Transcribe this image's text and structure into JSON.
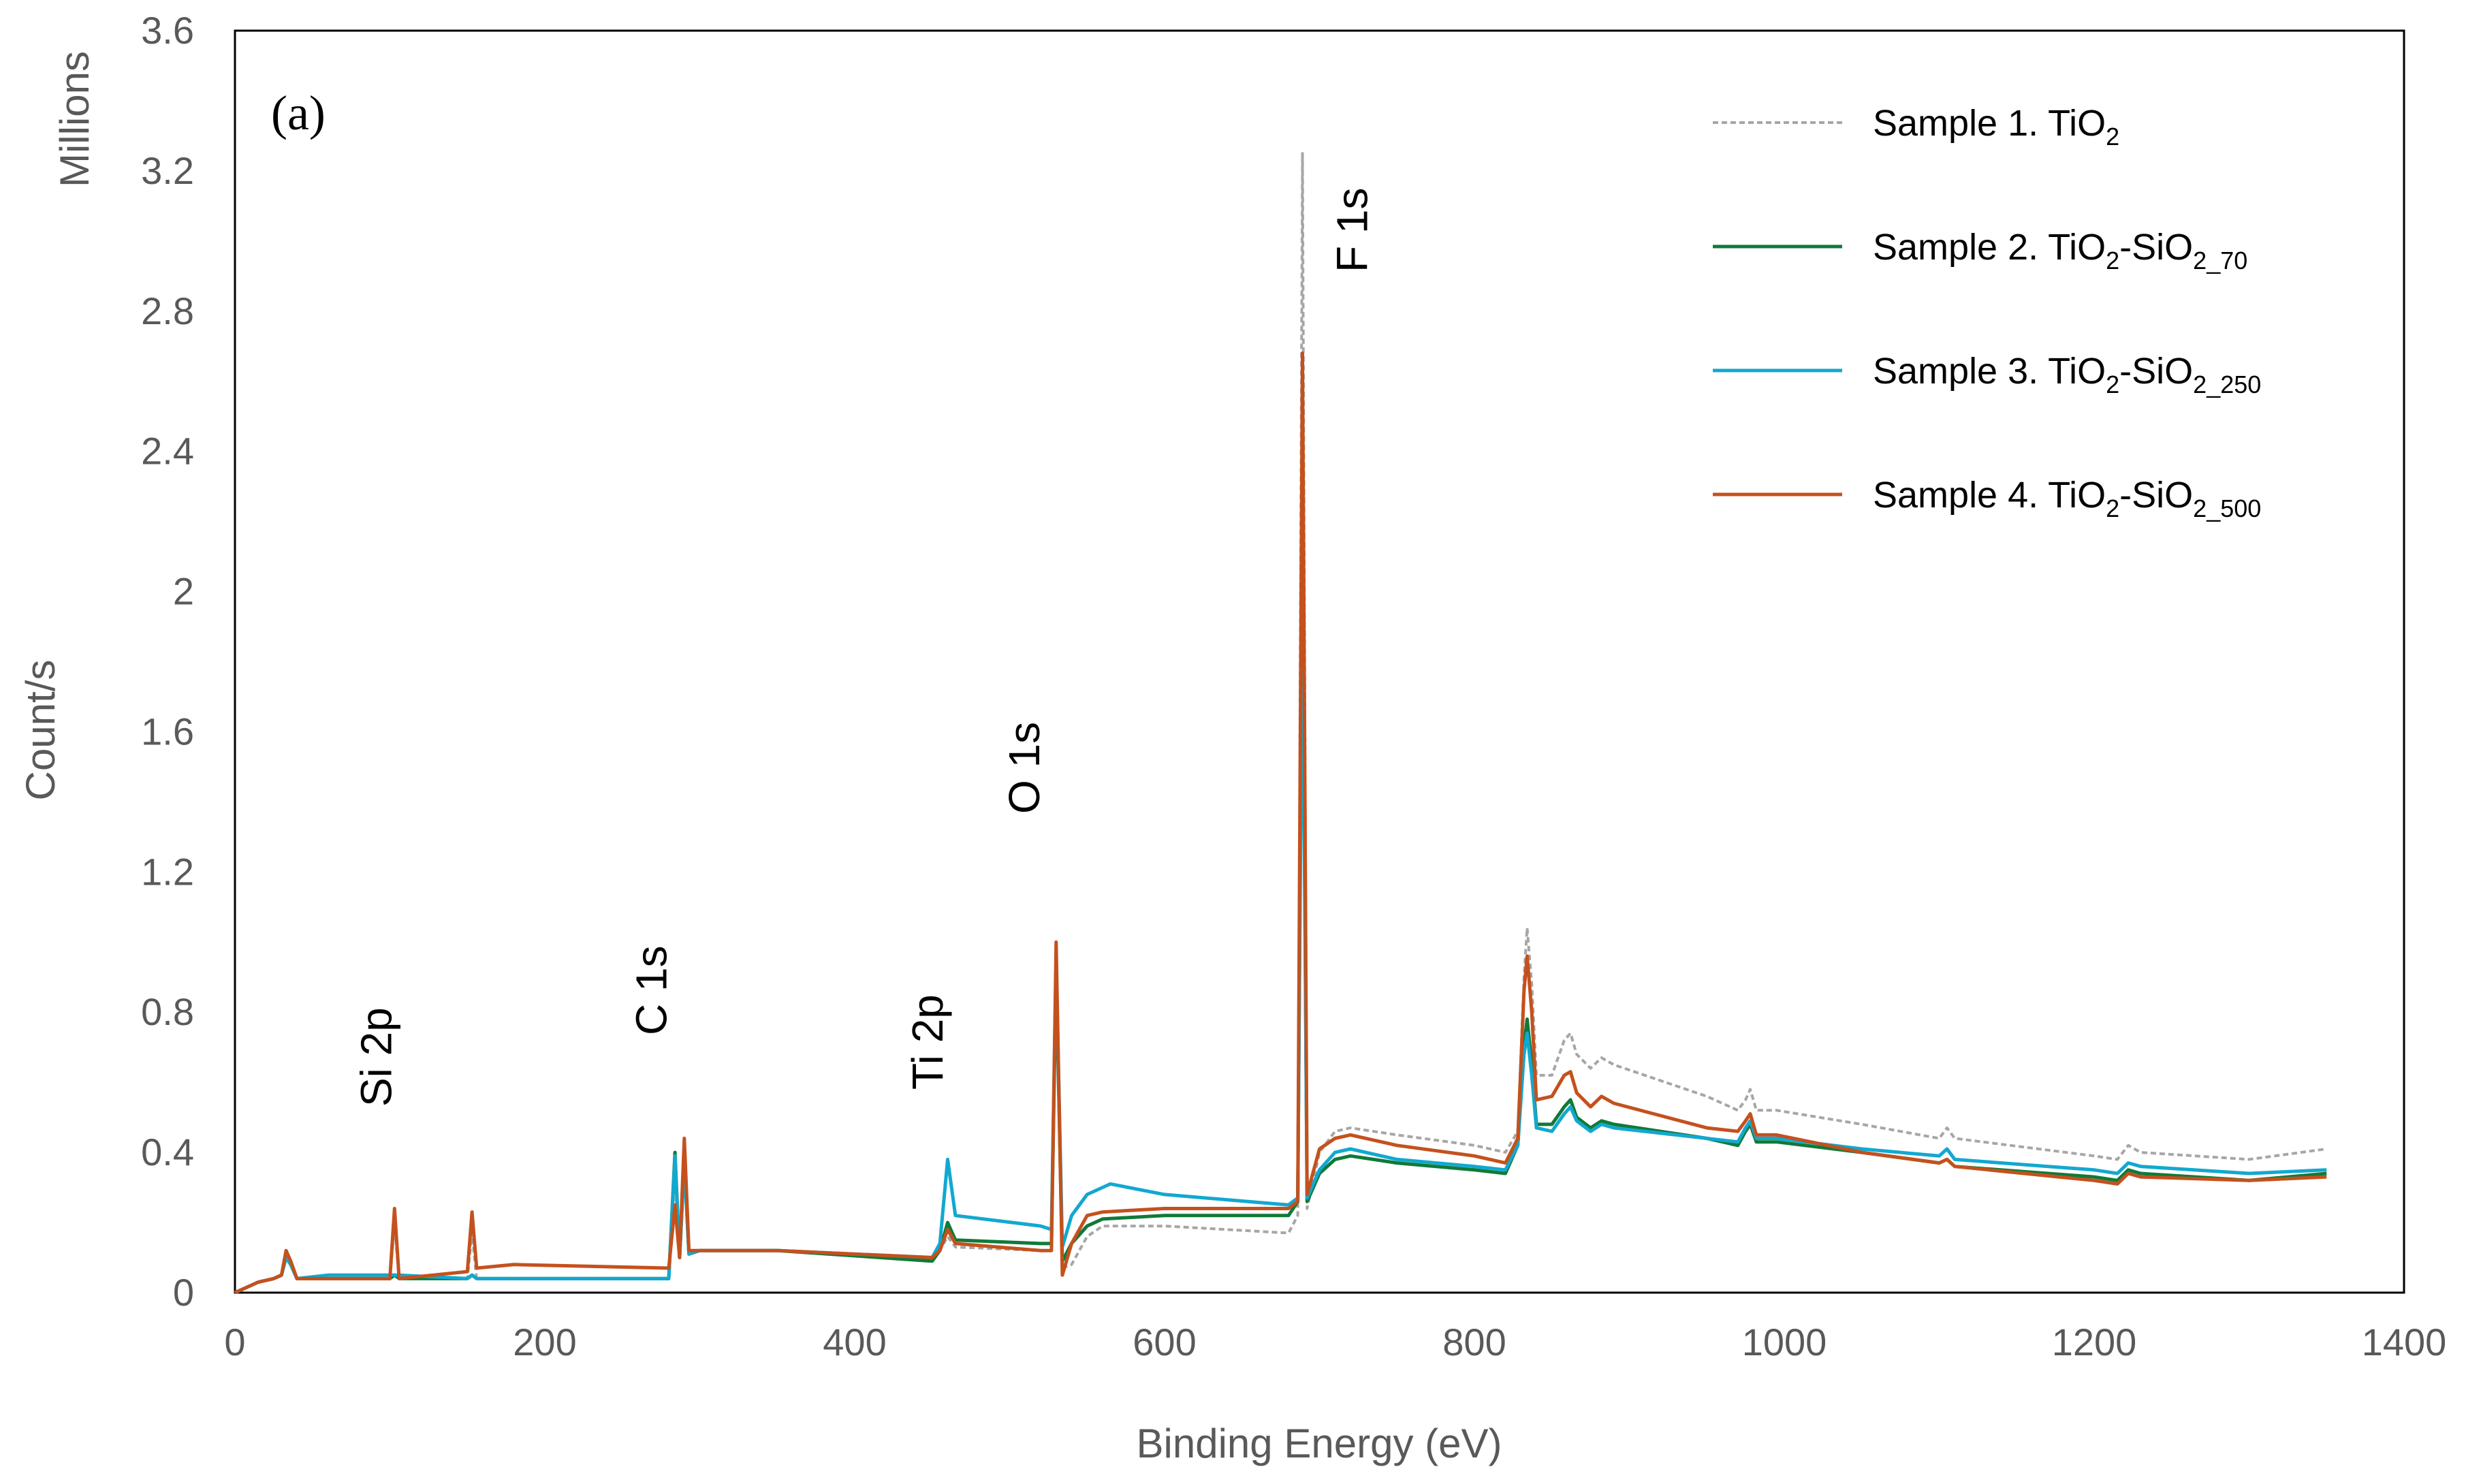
{
  "chart_data": {
    "type": "line",
    "panel_label": "(a)",
    "xlabel": "Binding Energy (eV)",
    "ylabel": "Count/s",
    "y_unit_label": "Millions",
    "xlim": [
      0,
      1400
    ],
    "ylim": [
      0,
      3.6
    ],
    "x_ticks": [
      0,
      200,
      400,
      600,
      800,
      1000,
      1200,
      1400
    ],
    "x_tick_labels": [
      "0",
      "200",
      "400",
      "600",
      "800",
      "1000",
      "1200",
      "1400"
    ],
    "y_ticks": [
      0,
      0.4,
      0.8,
      1.2,
      1.6,
      2.0,
      2.4,
      2.8,
      3.2,
      3.6
    ],
    "y_tick_labels": [
      "0",
      "0.4",
      "0.8",
      "1.2",
      "1.6",
      "2",
      "2.4",
      "2.8",
      "3.2",
      "3.6"
    ],
    "grid": false,
    "legend_position": "top-right",
    "peak_annotations": [
      {
        "label": "Si 2p",
        "x": 103
      },
      {
        "label": "C 1s",
        "x": 285
      },
      {
        "label": "Ti 2p",
        "x": 459
      },
      {
        "label": "O 1s",
        "x": 530
      },
      {
        "label": "F 1s",
        "x": 689
      }
    ],
    "series": [
      {
        "id": "s1",
        "name_main": "Sample 1. TiO",
        "name_sub1": "2",
        "name_mid": "",
        "name_sub2": "",
        "color": "#a6a6a6",
        "dashed": true,
        "points": [
          [
            0,
            0
          ],
          [
            5,
            0.01
          ],
          [
            15,
            0.03
          ],
          [
            25,
            0.04
          ],
          [
            30,
            0.05
          ],
          [
            33,
            0.11
          ],
          [
            36,
            0.09
          ],
          [
            40,
            0.04
          ],
          [
            100,
            0.04
          ],
          [
            103,
            0.19
          ],
          [
            106,
            0.04
          ],
          [
            150,
            0.04
          ],
          [
            153,
            0.17
          ],
          [
            156,
            0.04
          ],
          [
            280,
            0.04
          ],
          [
            284,
            0.34
          ],
          [
            287,
            0.1
          ],
          [
            290,
            0.4
          ],
          [
            293,
            0.11
          ],
          [
            300,
            0.12
          ],
          [
            350,
            0.12
          ],
          [
            450,
            0.09
          ],
          [
            455,
            0.12
          ],
          [
            460,
            0.16
          ],
          [
            465,
            0.13
          ],
          [
            520,
            0.12
          ],
          [
            527,
            0.12
          ],
          [
            530,
            0.95
          ],
          [
            534,
            0.07
          ],
          [
            540,
            0.08
          ],
          [
            550,
            0.16
          ],
          [
            560,
            0.19
          ],
          [
            600,
            0.19
          ],
          [
            680,
            0.17
          ],
          [
            686,
            0.22
          ],
          [
            689,
            3.25
          ],
          [
            692,
            0.24
          ],
          [
            700,
            0.4
          ],
          [
            710,
            0.46
          ],
          [
            720,
            0.47
          ],
          [
            750,
            0.45
          ],
          [
            800,
            0.42
          ],
          [
            820,
            0.4
          ],
          [
            828,
            0.46
          ],
          [
            832,
            0.9
          ],
          [
            834,
            1.04
          ],
          [
            837,
            0.88
          ],
          [
            840,
            0.62
          ],
          [
            850,
            0.62
          ],
          [
            858,
            0.72
          ],
          [
            862,
            0.74
          ],
          [
            866,
            0.68
          ],
          [
            875,
            0.64
          ],
          [
            882,
            0.67
          ],
          [
            890,
            0.65
          ],
          [
            950,
            0.56
          ],
          [
            970,
            0.52
          ],
          [
            975,
            0.55
          ],
          [
            978,
            0.58
          ],
          [
            982,
            0.52
          ],
          [
            995,
            0.52
          ],
          [
            1050,
            0.48
          ],
          [
            1100,
            0.44
          ],
          [
            1105,
            0.47
          ],
          [
            1110,
            0.44
          ],
          [
            1200,
            0.39
          ],
          [
            1215,
            0.38
          ],
          [
            1222,
            0.42
          ],
          [
            1230,
            0.4
          ],
          [
            1300,
            0.38
          ],
          [
            1350,
            0.41
          ]
        ]
      },
      {
        "id": "s2",
        "name_main": "Sample 2. TiO",
        "name_sub1": "2",
        "name_mid": "-SiO",
        "name_sub2": "2_70",
        "color": "#0f7a39",
        "dashed": false,
        "points": [
          [
            0,
            0
          ],
          [
            5,
            0.01
          ],
          [
            15,
            0.03
          ],
          [
            25,
            0.04
          ],
          [
            30,
            0.05
          ],
          [
            33,
            0.1
          ],
          [
            36,
            0.08
          ],
          [
            40,
            0.04
          ],
          [
            100,
            0.04
          ],
          [
            103,
            0.05
          ],
          [
            106,
            0.04
          ],
          [
            150,
            0.04
          ],
          [
            153,
            0.05
          ],
          [
            156,
            0.04
          ],
          [
            280,
            0.04
          ],
          [
            284,
            0.4
          ],
          [
            287,
            0.1
          ],
          [
            290,
            0.38
          ],
          [
            293,
            0.11
          ],
          [
            300,
            0.12
          ],
          [
            350,
            0.12
          ],
          [
            450,
            0.09
          ],
          [
            455,
            0.12
          ],
          [
            460,
            0.2
          ],
          [
            465,
            0.15
          ],
          [
            520,
            0.14
          ],
          [
            527,
            0.14
          ],
          [
            530,
            0.92
          ],
          [
            534,
            0.09
          ],
          [
            540,
            0.14
          ],
          [
            550,
            0.19
          ],
          [
            560,
            0.21
          ],
          [
            600,
            0.22
          ],
          [
            680,
            0.22
          ],
          [
            686,
            0.26
          ],
          [
            689,
            2.1
          ],
          [
            692,
            0.26
          ],
          [
            700,
            0.34
          ],
          [
            710,
            0.38
          ],
          [
            720,
            0.39
          ],
          [
            750,
            0.37
          ],
          [
            800,
            0.35
          ],
          [
            820,
            0.34
          ],
          [
            828,
            0.42
          ],
          [
            832,
            0.7
          ],
          [
            834,
            0.78
          ],
          [
            837,
            0.65
          ],
          [
            840,
            0.48
          ],
          [
            850,
            0.48
          ],
          [
            858,
            0.53
          ],
          [
            862,
            0.55
          ],
          [
            866,
            0.5
          ],
          [
            875,
            0.47
          ],
          [
            882,
            0.49
          ],
          [
            890,
            0.48
          ],
          [
            950,
            0.44
          ],
          [
            970,
            0.42
          ],
          [
            975,
            0.46
          ],
          [
            978,
            0.48
          ],
          [
            982,
            0.43
          ],
          [
            995,
            0.43
          ],
          [
            1050,
            0.4
          ],
          [
            1100,
            0.37
          ],
          [
            1105,
            0.38
          ],
          [
            1110,
            0.36
          ],
          [
            1200,
            0.33
          ],
          [
            1215,
            0.32
          ],
          [
            1222,
            0.35
          ],
          [
            1230,
            0.34
          ],
          [
            1300,
            0.32
          ],
          [
            1350,
            0.34
          ]
        ]
      },
      {
        "id": "s3",
        "name_main": "Sample 3. TiO",
        "name_sub1": "2",
        "name_mid": "-SiO",
        "name_sub2": "2_250",
        "color": "#12a8d0",
        "dashed": false,
        "points": [
          [
            0,
            0
          ],
          [
            5,
            0.01
          ],
          [
            15,
            0.03
          ],
          [
            25,
            0.04
          ],
          [
            30,
            0.05
          ],
          [
            33,
            0.1
          ],
          [
            36,
            0.08
          ],
          [
            40,
            0.04
          ],
          [
            60,
            0.05
          ],
          [
            100,
            0.05
          ],
          [
            103,
            0.05
          ],
          [
            106,
            0.05
          ],
          [
            150,
            0.04
          ],
          [
            153,
            0.05
          ],
          [
            156,
            0.04
          ],
          [
            280,
            0.04
          ],
          [
            284,
            0.39
          ],
          [
            287,
            0.1
          ],
          [
            290,
            0.37
          ],
          [
            293,
            0.11
          ],
          [
            300,
            0.12
          ],
          [
            350,
            0.12
          ],
          [
            450,
            0.1
          ],
          [
            455,
            0.14
          ],
          [
            460,
            0.38
          ],
          [
            465,
            0.22
          ],
          [
            520,
            0.19
          ],
          [
            527,
            0.18
          ],
          [
            530,
            0.95
          ],
          [
            534,
            0.13
          ],
          [
            540,
            0.22
          ],
          [
            550,
            0.28
          ],
          [
            565,
            0.31
          ],
          [
            600,
            0.28
          ],
          [
            680,
            0.25
          ],
          [
            686,
            0.27
          ],
          [
            689,
            1.95
          ],
          [
            692,
            0.27
          ],
          [
            700,
            0.35
          ],
          [
            710,
            0.4
          ],
          [
            720,
            0.41
          ],
          [
            750,
            0.38
          ],
          [
            800,
            0.36
          ],
          [
            820,
            0.35
          ],
          [
            828,
            0.42
          ],
          [
            832,
            0.68
          ],
          [
            834,
            0.74
          ],
          [
            837,
            0.62
          ],
          [
            840,
            0.47
          ],
          [
            850,
            0.46
          ],
          [
            858,
            0.51
          ],
          [
            862,
            0.53
          ],
          [
            866,
            0.49
          ],
          [
            875,
            0.46
          ],
          [
            882,
            0.48
          ],
          [
            890,
            0.47
          ],
          [
            950,
            0.44
          ],
          [
            970,
            0.43
          ],
          [
            975,
            0.47
          ],
          [
            978,
            0.49
          ],
          [
            982,
            0.44
          ],
          [
            995,
            0.44
          ],
          [
            1050,
            0.41
          ],
          [
            1100,
            0.39
          ],
          [
            1105,
            0.41
          ],
          [
            1110,
            0.38
          ],
          [
            1200,
            0.35
          ],
          [
            1215,
            0.34
          ],
          [
            1222,
            0.37
          ],
          [
            1230,
            0.36
          ],
          [
            1300,
            0.34
          ],
          [
            1350,
            0.35
          ]
        ]
      },
      {
        "id": "s4",
        "name_main": "Sample 4. TiO",
        "name_sub1": "2",
        "name_mid": "-SiO",
        "name_sub2": "2_500",
        "color": "#c4511d",
        "dashed": false,
        "points": [
          [
            0,
            0
          ],
          [
            5,
            0.01
          ],
          [
            15,
            0.03
          ],
          [
            25,
            0.04
          ],
          [
            30,
            0.05
          ],
          [
            33,
            0.12
          ],
          [
            36,
            0.09
          ],
          [
            40,
            0.04
          ],
          [
            100,
            0.04
          ],
          [
            103,
            0.24
          ],
          [
            106,
            0.04
          ],
          [
            150,
            0.06
          ],
          [
            153,
            0.23
          ],
          [
            156,
            0.07
          ],
          [
            180,
            0.08
          ],
          [
            280,
            0.07
          ],
          [
            284,
            0.25
          ],
          [
            287,
            0.1
          ],
          [
            290,
            0.44
          ],
          [
            293,
            0.12
          ],
          [
            300,
            0.12
          ],
          [
            350,
            0.12
          ],
          [
            450,
            0.1
          ],
          [
            455,
            0.12
          ],
          [
            460,
            0.18
          ],
          [
            465,
            0.14
          ],
          [
            520,
            0.12
          ],
          [
            527,
            0.12
          ],
          [
            530,
            1.0
          ],
          [
            534,
            0.05
          ],
          [
            540,
            0.14
          ],
          [
            550,
            0.22
          ],
          [
            560,
            0.23
          ],
          [
            600,
            0.24
          ],
          [
            680,
            0.24
          ],
          [
            686,
            0.26
          ],
          [
            689,
            2.68
          ],
          [
            692,
            0.28
          ],
          [
            700,
            0.41
          ],
          [
            710,
            0.44
          ],
          [
            720,
            0.45
          ],
          [
            750,
            0.42
          ],
          [
            800,
            0.39
          ],
          [
            820,
            0.37
          ],
          [
            828,
            0.44
          ],
          [
            832,
            0.86
          ],
          [
            834,
            0.96
          ],
          [
            837,
            0.8
          ],
          [
            840,
            0.55
          ],
          [
            850,
            0.56
          ],
          [
            858,
            0.62
          ],
          [
            862,
            0.63
          ],
          [
            866,
            0.57
          ],
          [
            875,
            0.53
          ],
          [
            882,
            0.56
          ],
          [
            890,
            0.54
          ],
          [
            950,
            0.47
          ],
          [
            970,
            0.46
          ],
          [
            975,
            0.49
          ],
          [
            978,
            0.51
          ],
          [
            982,
            0.45
          ],
          [
            995,
            0.45
          ],
          [
            1050,
            0.4
          ],
          [
            1100,
            0.37
          ],
          [
            1105,
            0.38
          ],
          [
            1110,
            0.36
          ],
          [
            1200,
            0.32
          ],
          [
            1215,
            0.31
          ],
          [
            1222,
            0.34
          ],
          [
            1230,
            0.33
          ],
          [
            1300,
            0.32
          ],
          [
            1350,
            0.33
          ]
        ]
      }
    ]
  }
}
